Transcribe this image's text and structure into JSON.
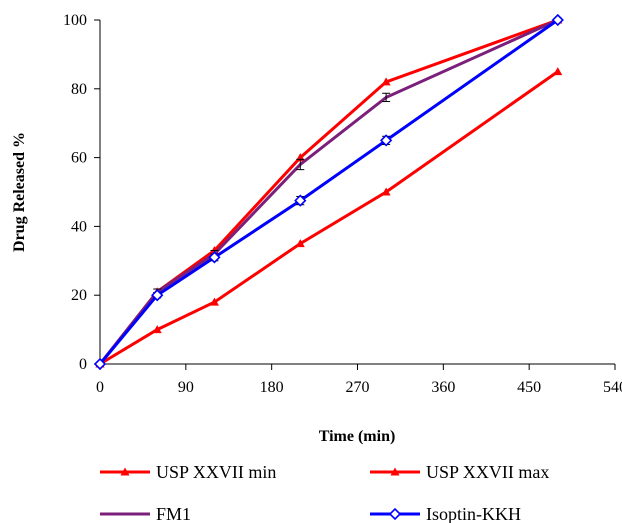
{
  "chart_data": {
    "type": "line",
    "title": "",
    "xlabel": "Time (min)",
    "ylabel": "Drug Released %",
    "xlim": [
      0,
      540
    ],
    "ylim": [
      0,
      100
    ],
    "xticks": [
      "0",
      "90",
      "180",
      "270",
      "360",
      "450",
      "540"
    ],
    "yticks": [
      "0",
      "20",
      "40",
      "60",
      "80",
      "100"
    ],
    "grid": false,
    "legend_position": "bottom",
    "series": [
      {
        "name": "USP XXVII min",
        "color": "#ff0000",
        "marker": "triangle",
        "x": [
          0,
          60,
          120,
          210,
          300,
          480
        ],
        "y": [
          0,
          21,
          33,
          60,
          82,
          100
        ]
      },
      {
        "name": "USP XXVII max",
        "color": "#ff0000",
        "marker": "triangle",
        "x": [
          0,
          60,
          120,
          210,
          300,
          480
        ],
        "y": [
          0,
          10,
          18,
          35,
          50,
          85
        ]
      },
      {
        "name": "FM1",
        "color": "#7b1f7b",
        "marker": "none",
        "x": [
          0,
          60,
          120,
          210,
          300,
          480
        ],
        "y": [
          0,
          21,
          32,
          58,
          77.5,
          100
        ],
        "error": [
          0,
          0.8,
          1.0,
          1.5,
          1.2,
          0.5
        ]
      },
      {
        "name": "Isoptin-KKH",
        "color": "#0000ff",
        "marker": "open-diamond",
        "x": [
          0,
          60,
          120,
          210,
          300,
          480
        ],
        "y": [
          0,
          20,
          31,
          47.5,
          65,
          100
        ],
        "error": [
          0,
          0.8,
          1.0,
          1.2,
          1.2,
          0.5
        ]
      }
    ]
  }
}
